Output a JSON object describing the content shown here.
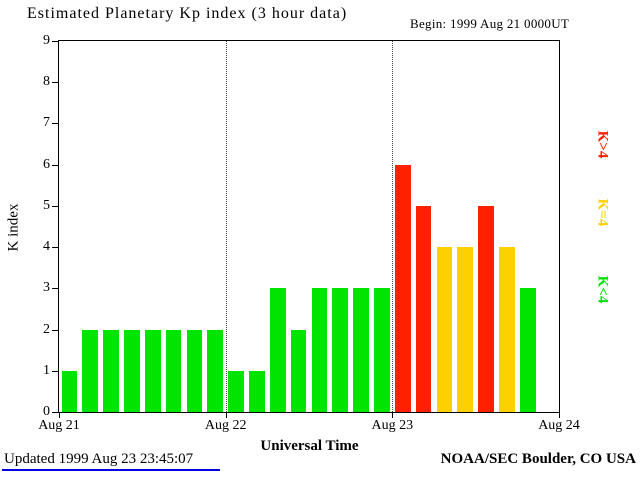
{
  "header": {
    "title": "Estimated Planetary Kp index (3 hour data)",
    "begin": "Begin: 1999 Aug 21 0000UT"
  },
  "footer": {
    "updated": "Updated 1999 Aug 23 23:45:07",
    "credit": "NOAA/SEC Boulder, CO USA",
    "underline_color": "#0000dd"
  },
  "chart_data": {
    "type": "bar",
    "title": "Estimated Planetary Kp index (3 hour data)",
    "xlabel": "Universal Time",
    "ylabel": "K index",
    "ylim": [
      0,
      9
    ],
    "y_ticks": [
      0,
      1,
      2,
      3,
      4,
      5,
      6,
      7,
      8,
      9
    ],
    "x_ticks": [
      "Aug 21",
      "Aug 22",
      "Aug 23",
      "Aug 24"
    ],
    "days": 3,
    "slots_per_day": 8,
    "interval_hours": 3,
    "values": [
      1,
      2,
      2,
      2,
      2,
      2,
      2,
      2,
      1,
      1,
      3,
      2,
      3,
      3,
      3,
      3,
      6,
      5,
      4,
      4,
      5,
      4,
      3
    ],
    "bar_colors": {
      "below4": "#00e400",
      "equal4": "#ffd000",
      "above4": "#ff2000"
    },
    "color_rule": "green K<4, yellow K=4, red K>4",
    "legend": [
      {
        "label": "K>4",
        "color": "#ff2000"
      },
      {
        "label": "K=4",
        "color": "#ffd000"
      },
      {
        "label": "K<4",
        "color": "#00e400"
      }
    ],
    "legend_position": "right",
    "grid": "dotted vertical lines at day boundaries"
  }
}
